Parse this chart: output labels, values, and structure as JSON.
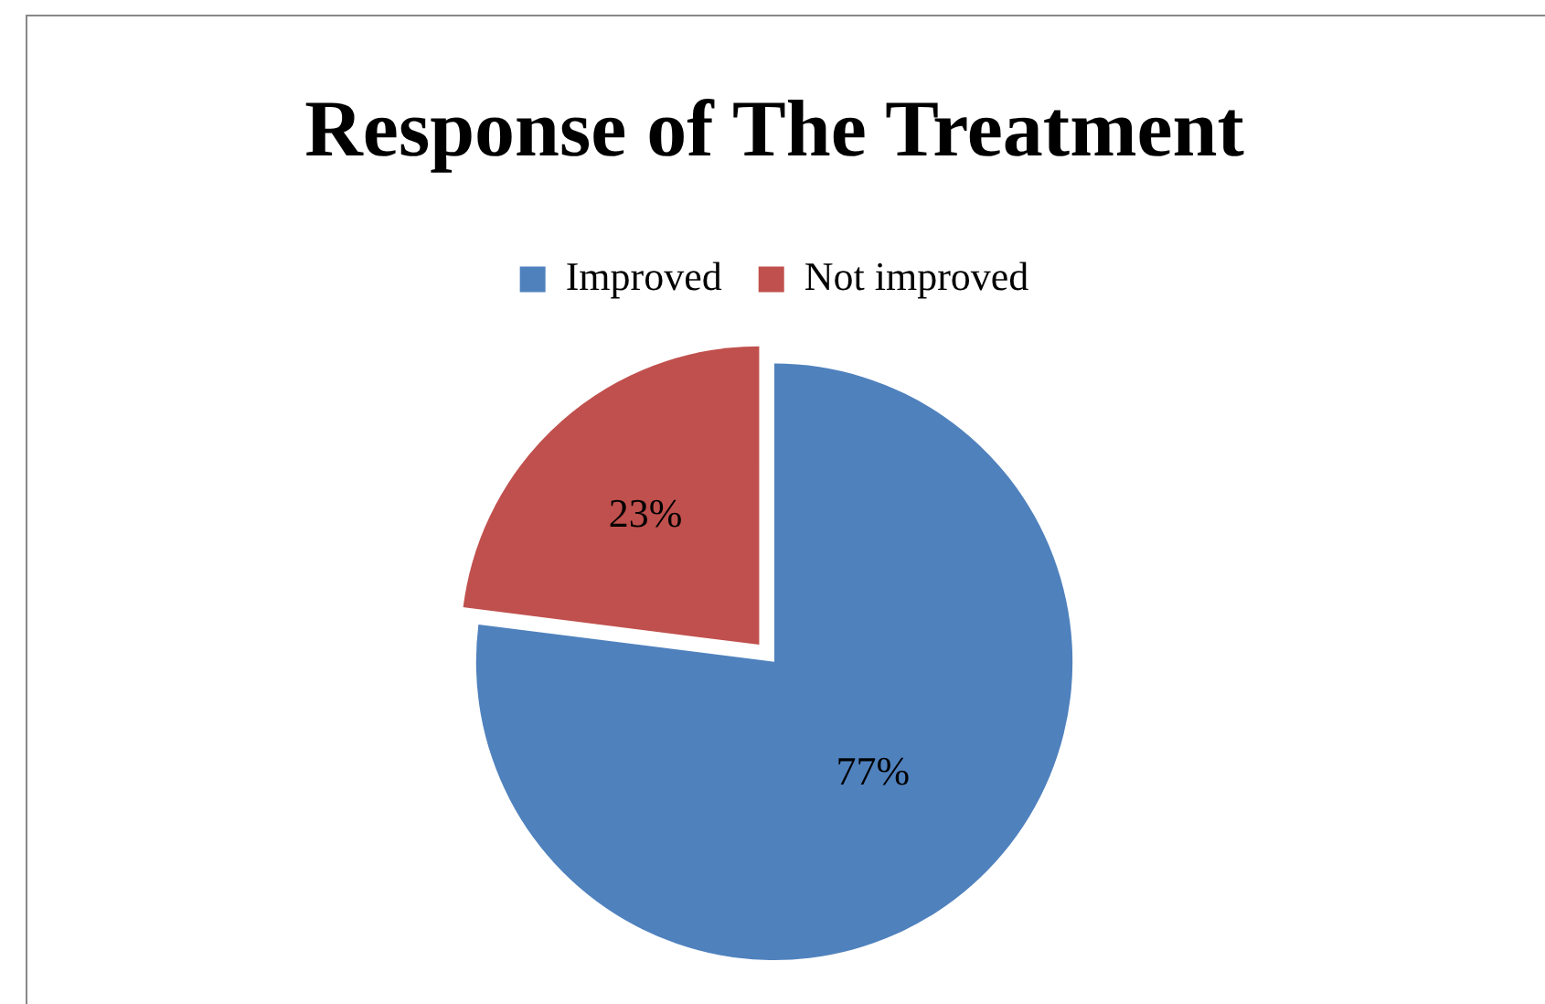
{
  "chart_data": {
    "type": "pie",
    "title": "Response of The Treatment",
    "categories": [
      "Improved",
      "Not improved"
    ],
    "values": [
      77,
      23
    ],
    "colors": [
      "#4f81bd",
      "#c0504d"
    ],
    "value_labels": [
      "77%",
      "23%"
    ],
    "legend": "top"
  }
}
